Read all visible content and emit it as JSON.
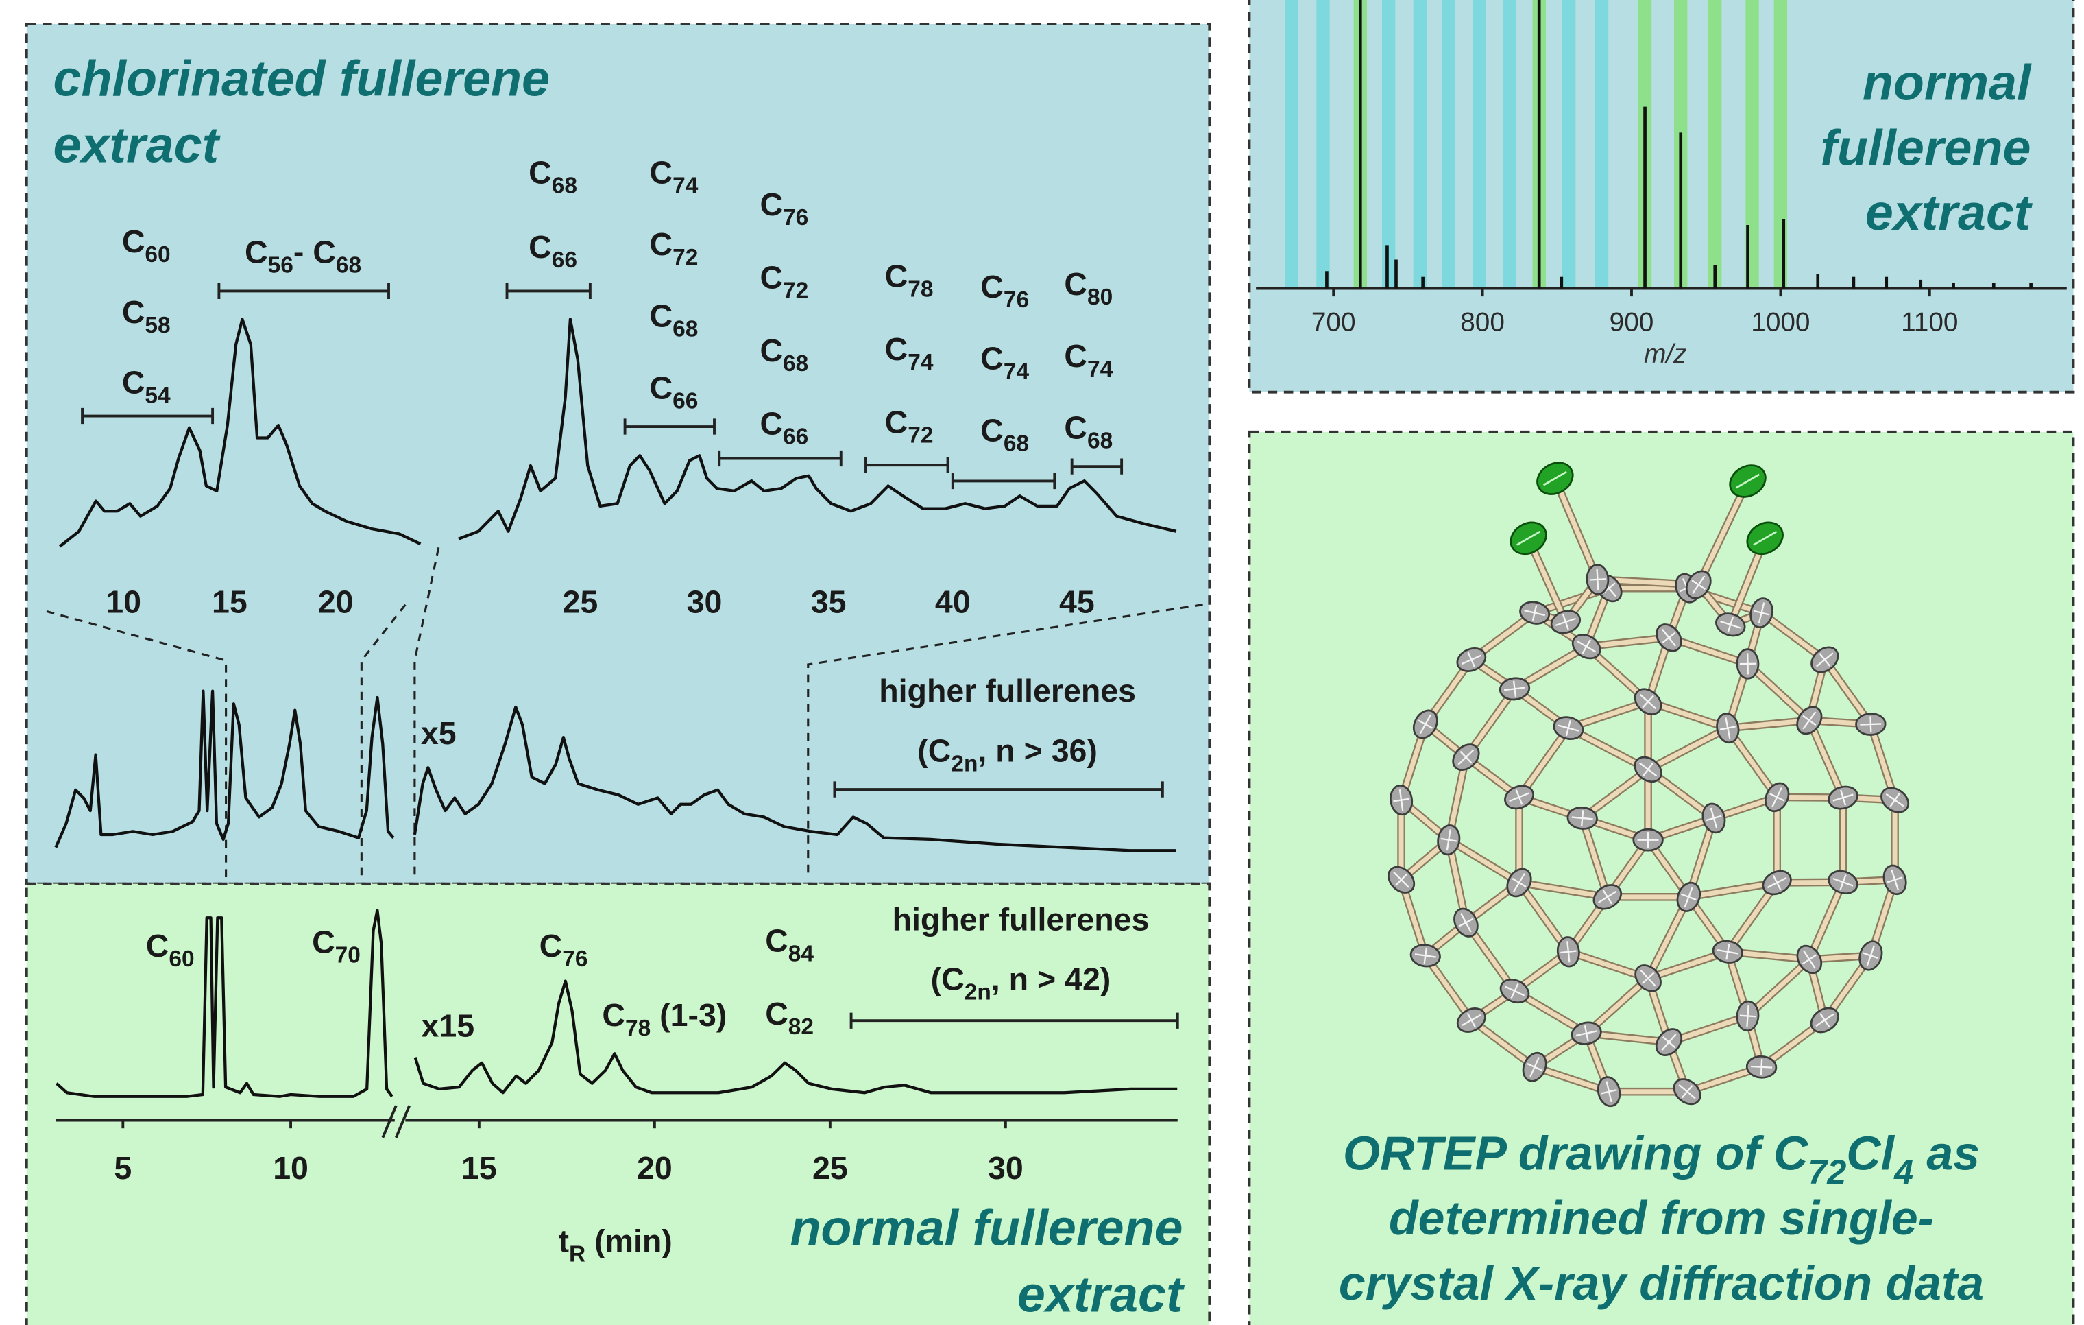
{
  "chart_data": [
    {
      "type": "line",
      "title": [
        "chlorinated fullerene",
        "extract"
      ],
      "x": [
        7.0,
        7.9,
        8.7,
        9.1,
        9.7,
        10.3,
        10.8,
        11.6,
        12.2,
        12.6,
        13.1,
        13.6,
        13.9,
        14.4,
        14.9,
        15.3,
        15.6,
        16.0,
        16.3,
        16.8,
        17.3,
        17.7,
        18.3,
        18.9,
        19.5,
        20.5,
        21.7,
        23.0,
        24.0
      ],
      "values": [
        2,
        8,
        20,
        16,
        16,
        19,
        14,
        18,
        25,
        37,
        49,
        40,
        26,
        24,
        50,
        82,
        92,
        82,
        45,
        45,
        50,
        42,
        26,
        19,
        16,
        12,
        9,
        7,
        3
      ],
      "color": "#111111",
      "xlim": [
        7,
        24.1
      ],
      "xticks": [
        10,
        15,
        20
      ],
      "ylim": [
        0,
        100
      ],
      "annotations": [
        {
          "labels": [
            [
              "C",
              "60"
            ],
            [
              "C",
              "58"
            ],
            [
              "C",
              "54"
            ]
          ],
          "range": [
            8.06,
            14.2
          ]
        },
        {
          "labels": [
            [
              "C",
              "56",
              "- C",
              "68"
            ]
          ],
          "range": [
            14.5,
            22.5
          ]
        }
      ]
    },
    {
      "type": "line",
      "x": [
        20.1,
        20.9,
        21.7,
        22.1,
        22.6,
        23.0,
        23.4,
        24.0,
        24.4,
        24.6,
        24.9,
        25.3,
        25.8,
        26.5,
        27.0,
        27.4,
        27.8,
        28.4,
        28.9,
        29.4,
        29.8,
        30.1,
        30.5,
        31.2,
        31.9,
        32.4,
        33.1,
        33.7,
        34.2,
        34.5,
        35.1,
        35.9,
        36.7,
        37.4,
        38.0,
        38.8,
        39.7,
        40.5,
        41.3,
        42.1,
        42.7,
        43.4,
        44.2,
        44.7,
        45.3,
        45.8,
        46.6,
        47.7,
        49.0
      ],
      "values": [
        5,
        8,
        16,
        8,
        21,
        34,
        24,
        29,
        61,
        92,
        76,
        34,
        18,
        19,
        34,
        38,
        32,
        19,
        24,
        36,
        38,
        29,
        25,
        24,
        28,
        24,
        25,
        29,
        30,
        25,
        19,
        16,
        19,
        26,
        22,
        17,
        17,
        19,
        17,
        18,
        22,
        18,
        18,
        25,
        28,
        23,
        14,
        11,
        8
      ],
      "color": "#111111",
      "xlim": [
        20.1,
        49
      ],
      "xticks": [
        25,
        30,
        35,
        40,
        45
      ],
      "ylim": [
        0,
        100
      ],
      "annotations": [
        {
          "labels": [
            [
              "C",
              "68"
            ],
            [
              "C",
              "66"
            ]
          ],
          "range": [
            22.05,
            25.4
          ]
        },
        {
          "labels": [
            [
              "C",
              "74"
            ],
            [
              "C",
              "72"
            ],
            [
              "C",
              "68"
            ],
            [
              "C",
              "66"
            ]
          ],
          "range": [
            26.8,
            30.4
          ]
        },
        {
          "labels": [
            [
              "C",
              "76"
            ],
            [
              "C",
              "72"
            ],
            [
              "C",
              "68"
            ],
            [
              "C",
              "66"
            ]
          ],
          "range": [
            30.6,
            35.5
          ]
        },
        {
          "labels": [
            [
              "C",
              "78"
            ],
            [
              "C",
              "74"
            ],
            [
              "C",
              "72"
            ]
          ],
          "range": [
            36.5,
            39.8
          ]
        },
        {
          "labels": [
            [
              "C",
              "76"
            ],
            [
              "C",
              "74"
            ],
            [
              "C",
              "68"
            ]
          ],
          "range": [
            40.0,
            44.1
          ]
        },
        {
          "labels": [
            [
              "C",
              "80"
            ],
            [
              "C",
              "74"
            ],
            [
              "C",
              "68"
            ]
          ],
          "range": [
            44.8,
            46.8
          ]
        }
      ]
    },
    {
      "type": "line",
      "x": [
        3.02,
        3.33,
        3.61,
        3.85,
        4.05,
        4.21,
        4.37,
        4.72,
        5.32,
        5.91,
        6.51,
        7.1,
        7.3,
        7.42,
        7.54,
        7.7,
        7.82,
        8.02,
        8.17,
        8.33,
        8.49,
        8.69,
        9.09,
        9.48,
        9.76,
        10.0,
        10.16,
        10.32,
        10.48,
        10.87,
        11.47,
        12.06,
        12.3,
        12.46,
        12.62,
        12.78,
        12.94,
        13.1
      ],
      "values": [
        2,
        17,
        38,
        33,
        25,
        60,
        10,
        10,
        12,
        10,
        12,
        18,
        25,
        100,
        25,
        100,
        17,
        7,
        17,
        92,
        79,
        33,
        21,
        27,
        42,
        67,
        88,
        67,
        25,
        15,
        12,
        8,
        25,
        71,
        96,
        67,
        12,
        8
      ],
      "color": "#111111",
      "xlim": [
        3.02,
        13.1
      ],
      "ylim": [
        0,
        100
      ]
    },
    {
      "type": "line",
      "x": [
        13.18,
        13.41,
        13.56,
        13.79,
        14.05,
        14.32,
        14.62,
        15.0,
        15.38,
        15.76,
        16.06,
        16.25,
        16.52,
        16.89,
        17.2,
        17.42,
        17.58,
        17.84,
        18.41,
        18.98,
        19.55,
        20.11,
        20.49,
        20.76,
        21.06,
        21.44,
        21.82,
        22.12,
        22.58,
        23.14,
        23.71,
        24.47,
        25.23,
        25.68,
        26.06,
        26.55,
        27.88,
        29.77,
        31.67,
        33.56,
        34.89
      ],
      "values": [
        10,
        42,
        52,
        38,
        25,
        33,
        23,
        29,
        42,
        67,
        90,
        79,
        46,
        42,
        54,
        71,
        58,
        42,
        38,
        35,
        29,
        33,
        23,
        29,
        29,
        35,
        38,
        29,
        23,
        21,
        15,
        12,
        10,
        21,
        17,
        8,
        7,
        4,
        2,
        0,
        0
      ],
      "color": "#111111",
      "xlim": [
        13.18,
        34.89
      ],
      "ylim": [
        0,
        100
      ],
      "annotations": [
        {
          "labels": [
            [
              "x5"
            ]
          ]
        },
        {
          "labels": [
            [
              "higher fullerenes"
            ],
            [
              "(C",
              "2n",
              ", n > 36)"
            ]
          ],
          "range": [
            25.15,
            34.5
          ]
        }
      ]
    },
    {
      "type": "line",
      "x": [
        3.02,
        3.33,
        4.13,
        5.32,
        6.9,
        7.38,
        7.5,
        7.62,
        7.7,
        7.82,
        7.94,
        8.06,
        8.49,
        8.69,
        8.89,
        9.68,
        10.0,
        10.87,
        11.87,
        12.27,
        12.46,
        12.58,
        12.7,
        12.86,
        13.02
      ],
      "values": [
        7,
        2,
        0,
        0,
        0,
        1,
        96,
        96,
        5,
        96,
        96,
        5,
        2,
        7,
        1,
        0,
        1,
        0,
        0,
        4,
        89,
        100,
        82,
        4,
        0
      ],
      "color": "#111111",
      "xlim": [
        3,
        13.1
      ],
      "xticks": [
        5,
        10
      ],
      "ylim": [
        0,
        100
      ],
      "annotations": [
        {
          "labels": [
            [
              "C",
              "60"
            ]
          ]
        },
        {
          "labels": [
            [
              "C",
              "70"
            ]
          ]
        }
      ]
    },
    {
      "type": "line",
      "title": [
        "normal fullerene",
        "extract"
      ],
      "xlabel": [
        "t",
        "R",
        " (min)"
      ],
      "x": [
        13.18,
        13.41,
        13.86,
        14.43,
        14.81,
        15.08,
        15.38,
        15.68,
        16.06,
        16.33,
        16.7,
        17.08,
        17.27,
        17.46,
        17.65,
        17.88,
        18.22,
        18.6,
        18.86,
        19.09,
        19.47,
        19.92,
        20.68,
        21.82,
        22.77,
        23.33,
        23.71,
        24.02,
        24.39,
        25.04,
        25.98,
        26.55,
        27.12,
        27.88,
        29.77,
        31.67,
        33.56,
        34.89
      ],
      "values": [
        21,
        7,
        4,
        5,
        14,
        18,
        7,
        2,
        11,
        7,
        14,
        29,
        50,
        62,
        46,
        12,
        7,
        14,
        23,
        14,
        5,
        2,
        2,
        2,
        5,
        11,
        18,
        14,
        7,
        4,
        2,
        5,
        6,
        2,
        2,
        2,
        4,
        4
      ],
      "color": "#111111",
      "xlim": [
        12.9,
        34.9
      ],
      "xticks": [
        15,
        20,
        25,
        30
      ],
      "ylim": [
        0,
        100
      ],
      "annotations": [
        {
          "labels": [
            [
              "x15"
            ]
          ]
        },
        {
          "labels": [
            [
              "C",
              "76"
            ]
          ]
        },
        {
          "labels": [
            [
              "C",
              "78",
              " (1-3)"
            ]
          ]
        },
        {
          "labels": [
            [
              "C",
              "84"
            ],
            [
              "C",
              "82"
            ]
          ]
        },
        {
          "labels": [
            [
              "higher fullerenes"
            ],
            [
              "(C",
              "2n",
              ", n > 42)"
            ]
          ],
          "range": [
            25.6,
            34.9
          ]
        }
      ]
    },
    {
      "type": "bar",
      "title": [
        "normal",
        "fullerene",
        "extract"
      ],
      "xlabel": "m/z",
      "x": [
        695.5,
        718,
        736,
        742,
        760,
        838,
        853,
        909,
        933,
        956,
        978,
        1002,
        1025,
        1049,
        1071,
        1094,
        1116,
        1143,
        1168
      ],
      "values": [
        6,
        100,
        15,
        10,
        4,
        100,
        4,
        63,
        54,
        8,
        22,
        24,
        5,
        4,
        4,
        3,
        2,
        2,
        2
      ],
      "color": "#111111",
      "xlim": [
        648,
        1192
      ],
      "xticks": [
        700,
        800,
        900,
        1000,
        1100
      ],
      "ylim": [
        0,
        100
      ],
      "bands": [
        {
          "color": "#7ed9de",
          "x": [
            672,
            693,
            737,
            758,
            777,
            798,
            818,
            858,
            880
          ]
        },
        {
          "color": "#8ee08a",
          "x": [
            718,
            838,
            909,
            933,
            956,
            981,
            1000
          ]
        }
      ]
    }
  ],
  "caption": [
    [
      "ORTEP drawing of C",
      "72",
      "Cl",
      "4",
      " as"
    ],
    [
      "determined from single-"
    ],
    [
      "crystal X-ray diffraction data"
    ]
  ]
}
